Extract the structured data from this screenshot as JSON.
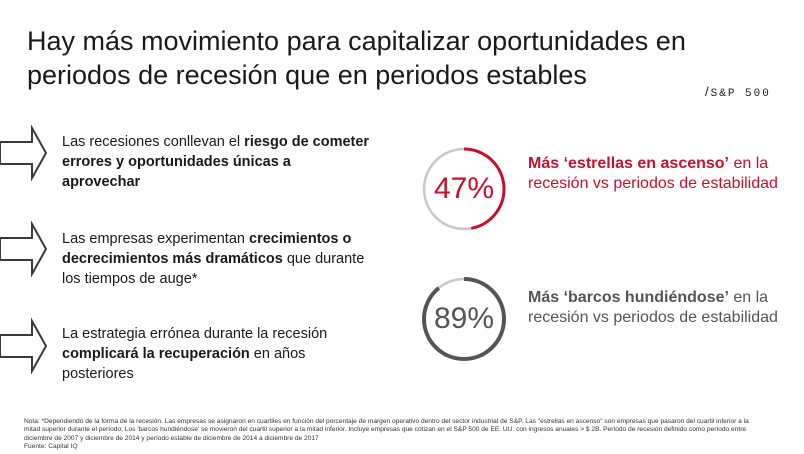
{
  "title": {
    "line1": "Hay más movimiento para capitalizar oportunidades en",
    "line2": "periodos de recesión que en periodos estables"
  },
  "brand": {
    "slash": "/",
    "text": "S&P 500"
  },
  "points": [
    {
      "pre": "Las recesiones conllevan el ",
      "bold": "riesgo de cometer errores y oportunidades únicas a aprovechar",
      "post": ""
    },
    {
      "pre": "Las empresas experimentan ",
      "bold": "crecimientos o decrecimientos más dramáticos",
      "post": " que durante los tiempos de auge*"
    },
    {
      "pre": "La estrategia errónea durante la recesión ",
      "bold": "complicará la recuperación",
      "post": " en años posteriores"
    }
  ],
  "stats": [
    {
      "value": "47%",
      "fraction": 0.47,
      "color": "#c8102e",
      "highlight": "Más ‘estrellas en ascenso’",
      "rest": " en la recesión vs periodos de estabilidad"
    },
    {
      "value": "89%",
      "fraction": 0.89,
      "color": "#555555",
      "highlight": "Más ‘barcos hundiéndose’",
      "rest": " en la recesión vs periodos de estabilidad"
    }
  ],
  "ring_track_color": "#c8c8c8",
  "accent_color": "#c8102e",
  "note": {
    "line1": "Nota: *Dependiendo de la forma de la recesión. Las empresas se asignaron en cuartiles en función del porcentaje de margen operativo dentro del sector industrial de S&P. Las \"estrellas en ascenso\" son empresas que pasaron del cuartil inferior a la",
    "line2": "mitad superior durante el período; Los 'barcos hundiéndose' se movieron del cuartil superior a la mitad inferior. Incluye empresas que cotizan en el S&P 500 de EE. UU. con ingresos anuales > $ 2B. Período de recesión definido como período entre",
    "line3": "diciembre de 2007 y diciembre de 2014 y período estable de diciembre de 2014 a diciembre de 2017",
    "line4": "Fuente: Capital IQ"
  }
}
